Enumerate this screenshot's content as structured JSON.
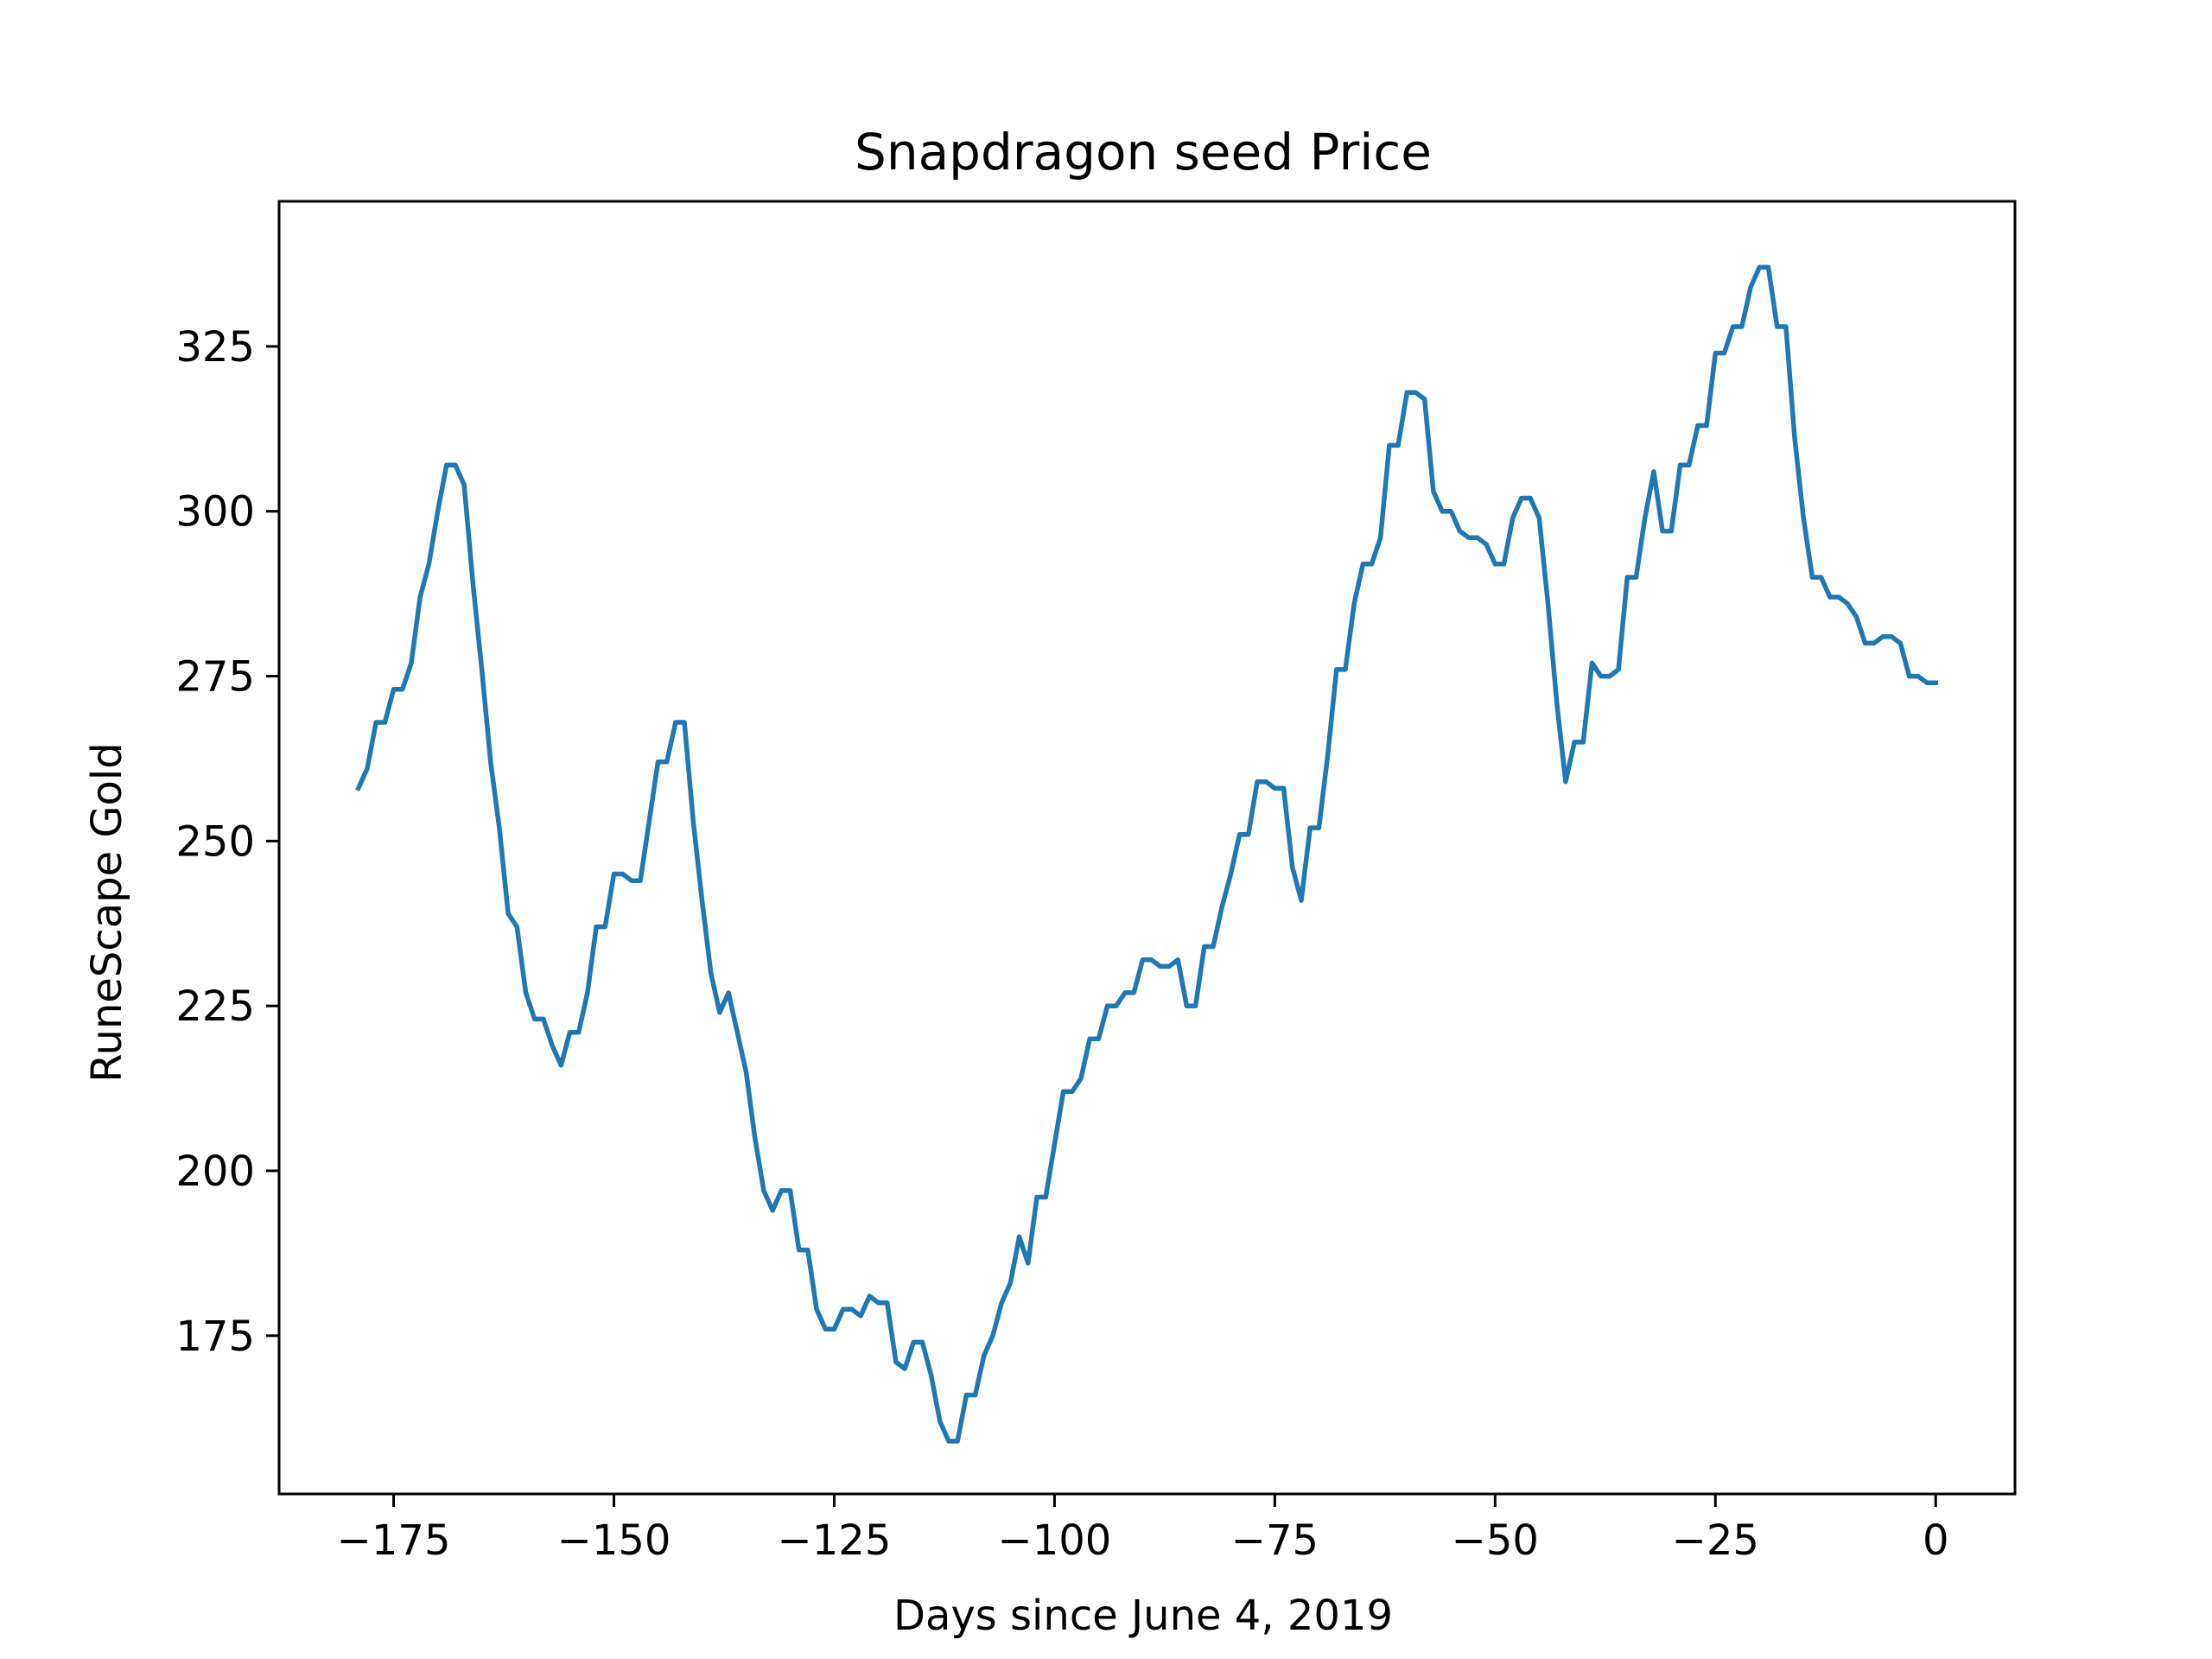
{
  "chart_data": {
    "type": "line",
    "title": "Snapdragon seed Price",
    "xlabel": "Days since June 4, 2019",
    "ylabel": "RuneScape Gold",
    "xlim": [
      -188,
      9
    ],
    "ylim": [
      151,
      347
    ],
    "xticks": [
      -175,
      -150,
      -125,
      -100,
      -75,
      -50,
      -25,
      0
    ],
    "xtick_labels": [
      "−175",
      "−150",
      "−125",
      "−100",
      "−75",
      "−50",
      "−25",
      "0"
    ],
    "yticks": [
      175,
      200,
      225,
      250,
      275,
      300,
      325
    ],
    "ytick_labels": [
      "175",
      "200",
      "225",
      "250",
      "275",
      "300",
      "325"
    ],
    "grid": false,
    "line_color": "#1f77b4",
    "series": [
      {
        "x": [
          -179,
          -178,
          -177,
          -176,
          -175,
          -174,
          -173,
          -172,
          -171,
          -170,
          -169,
          -168,
          -167,
          -166,
          -165,
          -164,
          -163,
          -162,
          -161,
          -160,
          -159,
          -158,
          -157,
          -156,
          -155,
          -154,
          -153,
          -152,
          -151,
          -150,
          -149,
          -148,
          -147,
          -146,
          -145,
          -144,
          -143,
          -142,
          -141,
          -140,
          -139,
          -138,
          -137,
          -136,
          -135,
          -134,
          -133,
          -132,
          -131,
          -130,
          -129,
          -128,
          -127,
          -126,
          -125,
          -124,
          -123,
          -122,
          -121,
          -120,
          -119,
          -118,
          -117,
          -116,
          -115,
          -114,
          -113,
          -112,
          -111,
          -110,
          -109,
          -108,
          -107,
          -106,
          -105,
          -104,
          -103,
          -102,
          -101,
          -100,
          -99,
          -98,
          -97,
          -96,
          -95,
          -94,
          -93,
          -92,
          -91,
          -90,
          -89,
          -88,
          -87,
          -86,
          -85,
          -84,
          -83,
          -82,
          -81,
          -80,
          -79,
          -78,
          -77,
          -76,
          -75,
          -74,
          -73,
          -72,
          -71,
          -70,
          -69,
          -68,
          -67,
          -66,
          -65,
          -64,
          -63,
          -62,
          -61,
          -60,
          -59,
          -58,
          -57,
          -56,
          -55,
          -54,
          -53,
          -52,
          -51,
          -50,
          -49,
          -48,
          -47,
          -46,
          -45,
          -44,
          -43,
          -42,
          -41,
          -40,
          -39,
          -38,
          -37,
          -36,
          -35,
          -34,
          -33,
          -32,
          -31,
          -30,
          -29,
          -28,
          -27,
          -26,
          -25,
          -24,
          -23,
          -22,
          -21,
          -20,
          -19,
          -18,
          -17,
          -16,
          -15,
          -14,
          -13,
          -12,
          -11,
          -10,
          -9,
          -8,
          -7,
          -6,
          -5,
          -4,
          -3,
          -2,
          -1,
          0
        ],
        "y": [
          258,
          261,
          268,
          268,
          273,
          273,
          277,
          287,
          292,
          300,
          307,
          307,
          304,
          289,
          276,
          262,
          252,
          239,
          237,
          227,
          223,
          223,
          219,
          216,
          221,
          221,
          227,
          237,
          237,
          245,
          245,
          244,
          244,
          253,
          262,
          262,
          268,
          268,
          253,
          241,
          230,
          224,
          227,
          221,
          215,
          205,
          197,
          194,
          197,
          197,
          188,
          188,
          179,
          176,
          176,
          179,
          179,
          178,
          181,
          180,
          180,
          171,
          170,
          174,
          174,
          169,
          162,
          159,
          159,
          166,
          166,
          172,
          175,
          180,
          183,
          190,
          186,
          196,
          196,
          204,
          212,
          212,
          214,
          220,
          220,
          225,
          225,
          227,
          227,
          232,
          232,
          231,
          231,
          232,
          225,
          225,
          234,
          234,
          240,
          245,
          251,
          251,
          259,
          259,
          258,
          258,
          246,
          241,
          252,
          252,
          263,
          276,
          276,
          286,
          292,
          292,
          296,
          310,
          310,
          318,
          318,
          317,
          303,
          300,
          300,
          297,
          296,
          296,
          295,
          292,
          292,
          299,
          302,
          302,
          299,
          286,
          271,
          259,
          265,
          265,
          277,
          275,
          275,
          276,
          290,
          290,
          299,
          306,
          297,
          297,
          307,
          307,
          313,
          313,
          324,
          324,
          328,
          328,
          334,
          337,
          337,
          328,
          328,
          311,
          299,
          290,
          290,
          287,
          287,
          286,
          284,
          280,
          280,
          281,
          281,
          280,
          275,
          275,
          274,
          274
        ]
      }
    ]
  }
}
